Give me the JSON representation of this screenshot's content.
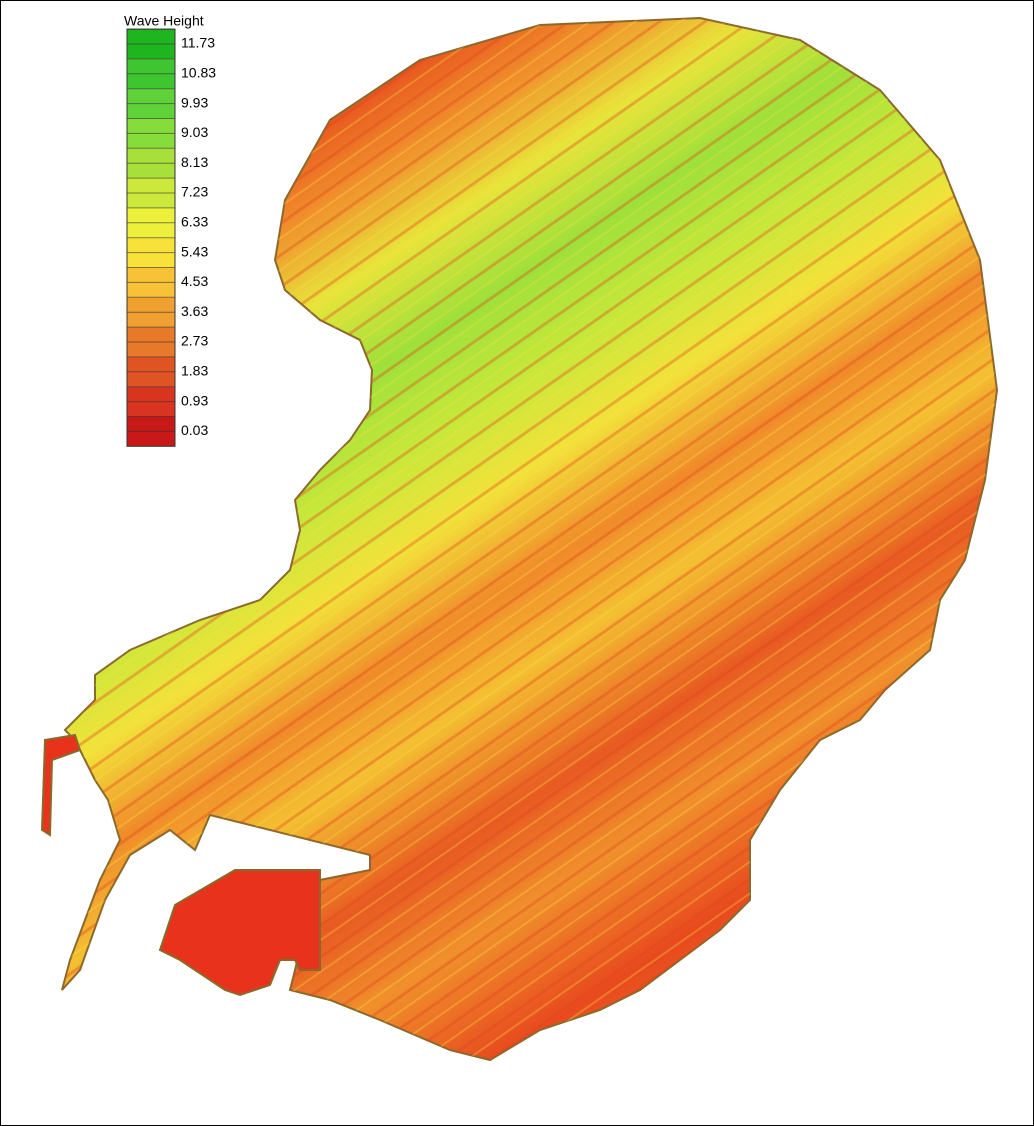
{
  "legend": {
    "title": "Wave Height",
    "levels": [
      11.73,
      10.83,
      9.93,
      9.03,
      8.13,
      7.23,
      6.33,
      5.43,
      4.53,
      3.63,
      2.73,
      1.83,
      0.93,
      0.03
    ],
    "colors": [
      "#1fb51f",
      "#3fc52f",
      "#5fd23a",
      "#86dc3a",
      "#a8e03a",
      "#cce83a",
      "#ecf03a",
      "#f8e23a",
      "#f8c236",
      "#f0a030",
      "#e8782a",
      "#e05424",
      "#d83420",
      "#c81818"
    ]
  }
}
